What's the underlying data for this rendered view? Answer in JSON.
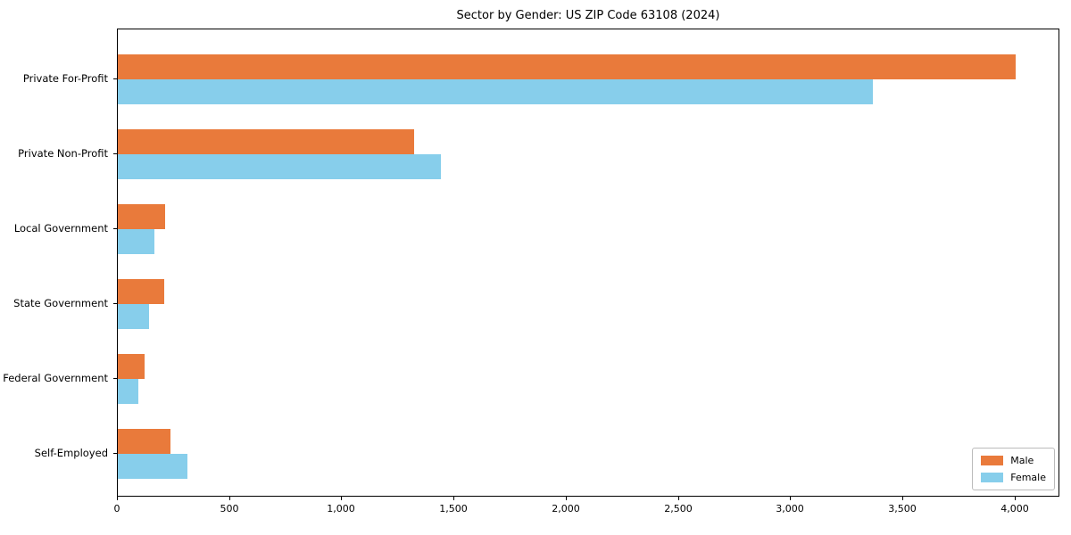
{
  "chart_data": {
    "type": "bar",
    "orientation": "horizontal",
    "title": "Sector by Gender: US ZIP Code 63108 (2024)",
    "categories": [
      "Private For-Profit",
      "Private Non-Profit",
      "Local Government",
      "State Government",
      "Federal Government",
      "Self-Employed"
    ],
    "series": [
      {
        "name": "Male",
        "color": "#e97a3b",
        "values": [
          4000,
          1320,
          210,
          205,
          120,
          235
        ]
      },
      {
        "name": "Female",
        "color": "#87ceeb",
        "values": [
          3365,
          1440,
          165,
          140,
          90,
          310
        ]
      }
    ],
    "xlabel": "",
    "ylabel": "",
    "xlim": [
      0,
      4200
    ],
    "xticks": {
      "values": [
        0,
        500,
        1000,
        1500,
        2000,
        2500,
        3000,
        3500,
        4000
      ],
      "labels": [
        "0",
        "500",
        "1,000",
        "1,500",
        "2,000",
        "2,500",
        "3,000",
        "3,500",
        "4,000"
      ]
    },
    "grid": false,
    "legend": {
      "position": "lower-right",
      "entries": [
        "Male",
        "Female"
      ]
    },
    "colors": {
      "axis": "#000000",
      "background": "#ffffff",
      "legend_border": "#bbbbbb"
    }
  }
}
